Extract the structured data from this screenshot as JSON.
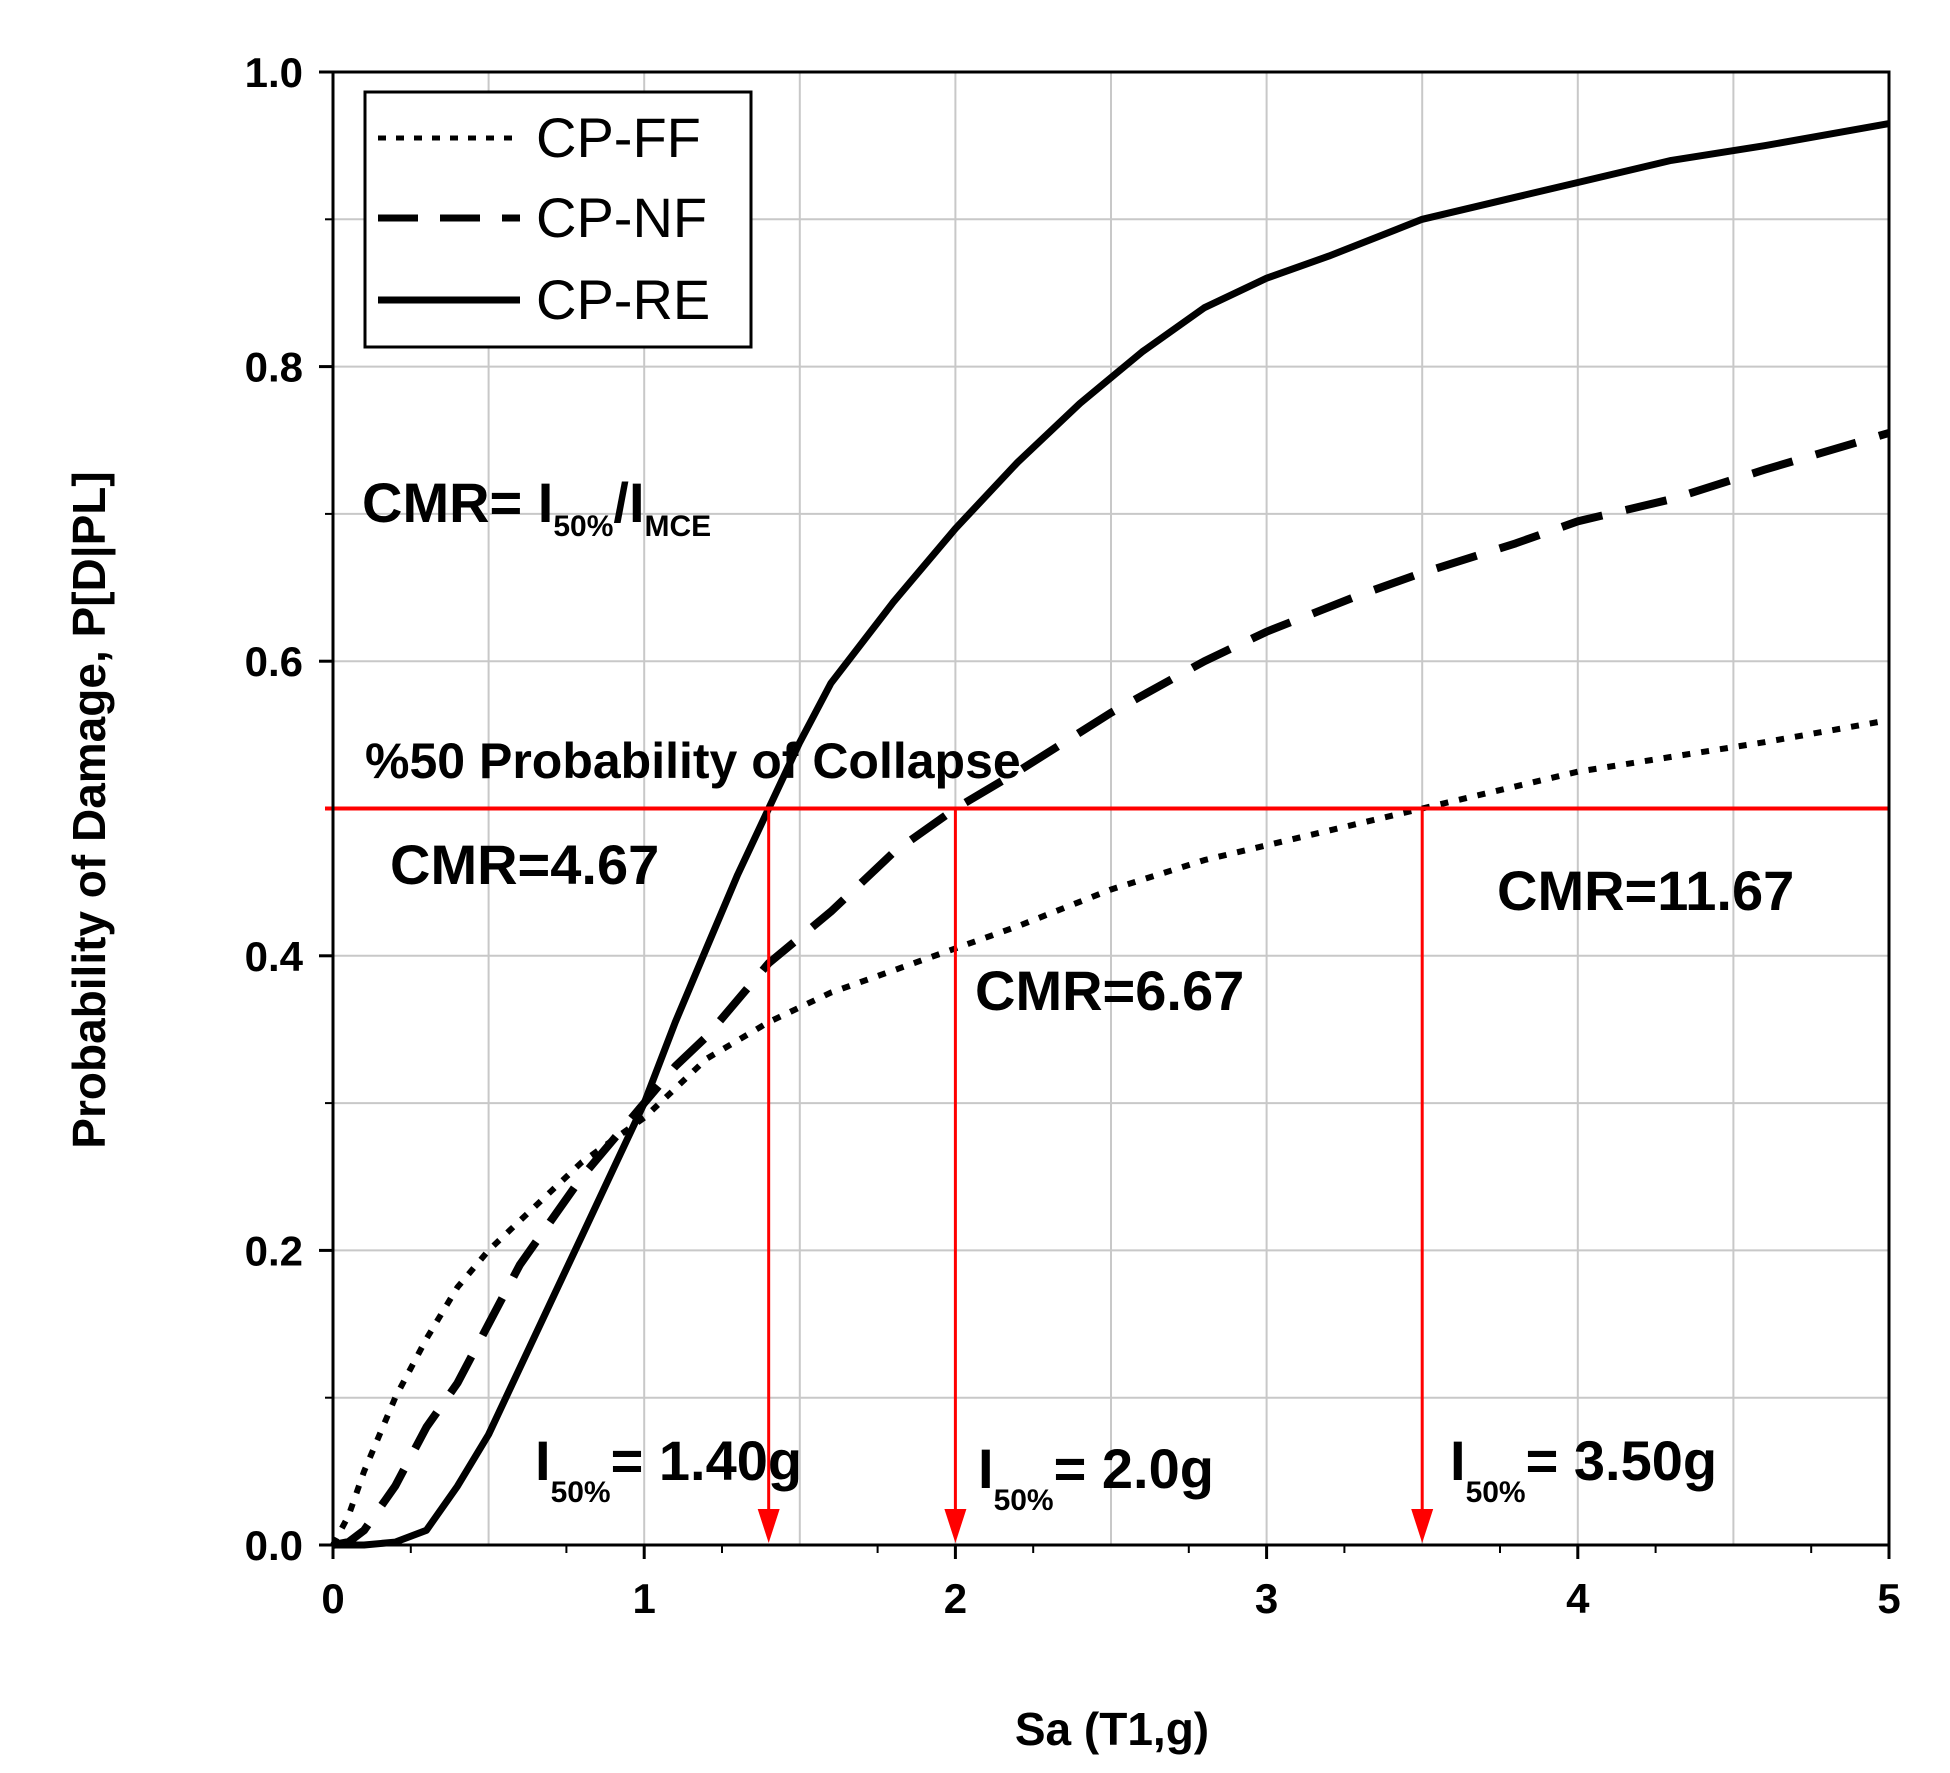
{
  "chart_data": {
    "type": "line",
    "xlabel": "Sa (T1,g)",
    "ylabel": "Probability of Damage, P[D|PL]",
    "xlim": [
      0,
      5
    ],
    "ylim": [
      0,
      1.0
    ],
    "x_ticks": [
      0,
      1,
      2,
      3,
      4,
      5
    ],
    "x_tick_labels": [
      "0",
      "1",
      "2",
      "3",
      "4",
      "5"
    ],
    "y_ticks": [
      0,
      0.2,
      0.4,
      0.6,
      0.8,
      1.0
    ],
    "y_tick_labels": [
      "0.0",
      "0.2",
      "0.4",
      "0.6",
      "0.8",
      "1.0"
    ],
    "grid": true,
    "legend_position": "top-left",
    "series": [
      {
        "name": "CP-FF",
        "style": "dotted",
        "x": [
          0,
          0.05,
          0.1,
          0.2,
          0.3,
          0.4,
          0.5,
          0.6,
          0.7,
          0.8,
          0.9,
          1.0,
          1.1,
          1.2,
          1.4,
          1.6,
          1.8,
          2.0,
          2.2,
          2.5,
          2.8,
          3.0,
          3.2,
          3.5,
          3.8,
          4.0,
          4.3,
          4.6,
          5.0
        ],
        "values": [
          0.0,
          0.02,
          0.05,
          0.1,
          0.14,
          0.175,
          0.2,
          0.22,
          0.24,
          0.26,
          0.275,
          0.29,
          0.31,
          0.33,
          0.355,
          0.375,
          0.39,
          0.405,
          0.42,
          0.445,
          0.465,
          0.475,
          0.485,
          0.5,
          0.515,
          0.525,
          0.535,
          0.545,
          0.56
        ]
      },
      {
        "name": "CP-NF",
        "style": "dashed",
        "x": [
          0,
          0.05,
          0.1,
          0.2,
          0.3,
          0.4,
          0.5,
          0.6,
          0.7,
          0.8,
          0.9,
          1.0,
          1.1,
          1.2,
          1.4,
          1.6,
          1.8,
          2.0,
          2.2,
          2.5,
          2.8,
          3.0,
          3.3,
          3.5,
          3.8,
          4.0,
          4.3,
          4.6,
          5.0
        ],
        "values": [
          0.0,
          0.002,
          0.01,
          0.04,
          0.08,
          0.11,
          0.15,
          0.19,
          0.22,
          0.25,
          0.275,
          0.3,
          0.325,
          0.345,
          0.395,
          0.43,
          0.47,
          0.5,
          0.525,
          0.565,
          0.6,
          0.62,
          0.645,
          0.66,
          0.68,
          0.695,
          0.71,
          0.73,
          0.755
        ]
      },
      {
        "name": "CP-RE",
        "style": "solid",
        "x": [
          0,
          0.1,
          0.2,
          0.3,
          0.4,
          0.5,
          0.6,
          0.7,
          0.8,
          0.9,
          1.0,
          1.1,
          1.2,
          1.3,
          1.4,
          1.5,
          1.6,
          1.8,
          2.0,
          2.2,
          2.4,
          2.6,
          2.8,
          3.0,
          3.2,
          3.5,
          3.8,
          4.0,
          4.3,
          4.6,
          5.0
        ],
        "values": [
          0.0,
          0.0,
          0.002,
          0.01,
          0.04,
          0.075,
          0.12,
          0.165,
          0.21,
          0.255,
          0.3,
          0.355,
          0.405,
          0.455,
          0.5,
          0.545,
          0.585,
          0.64,
          0.69,
          0.735,
          0.775,
          0.81,
          0.84,
          0.86,
          0.875,
          0.9,
          0.915,
          0.925,
          0.94,
          0.95,
          0.965
        ]
      }
    ],
    "threshold_line": {
      "y": 0.5,
      "label": "%50 Probability of Collapse",
      "color": "#ff0000"
    },
    "arrows": [
      {
        "x": 1.4,
        "from_y": 0.5,
        "to_y": 0
      },
      {
        "x": 2.0,
        "from_y": 0.5,
        "to_y": 0
      },
      {
        "x": 3.5,
        "from_y": 0.5,
        "to_y": 0
      }
    ],
    "annotations": {
      "formula": {
        "main": "CMR= I",
        "sub1": "50%",
        "slash": "/I",
        "sub2": "MCE"
      },
      "cmr_labels": [
        "CMR=4.67",
        "CMR=6.67",
        "CMR=11.67"
      ],
      "intensity_labels": [
        {
          "i": "I",
          "sub": "50%",
          "value": "= 1.40g"
        },
        {
          "i": "I",
          "sub": "50%",
          "value": "= 2.0g"
        },
        {
          "i": "I",
          "sub": "50%",
          "value": "= 3.50g"
        }
      ]
    }
  }
}
